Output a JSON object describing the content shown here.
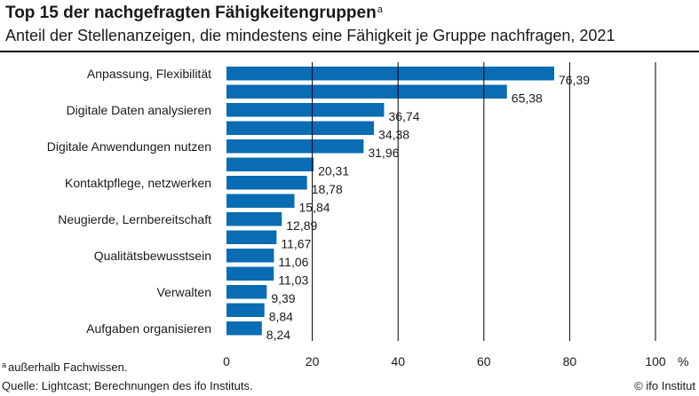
{
  "header": {
    "title": "Top 15 der nachgefragten Fähigkeitengruppen",
    "title_marker": "a",
    "subtitle": "Anteil der Stellenanzeigen, die mindestens eine Fähigkeit je Gruppe nachfragen, 2021"
  },
  "footer": {
    "footnote_marker": "a",
    "footnote_text": "außerhalb Fachwissen.",
    "source": "Quelle: Lightcast; Berechnungen des ifo Instituts.",
    "credit": "© ifo Institut"
  },
  "chart_data": {
    "type": "bar",
    "orientation": "horizontal",
    "categories": [
      "Anpassung, Flexibilität",
      "",
      "Digitale Daten analysieren",
      "",
      "Digitale Anwendungen nutzen",
      "",
      "Kontaktpflege, netzwerken",
      "",
      "Neugierde, Lernbereitschaft",
      "",
      "Qualitätsbewusstsein",
      "",
      "Verwalten",
      "",
      "Aufgaben organisieren"
    ],
    "values": [
      76.39,
      65.38,
      36.74,
      34.38,
      31.96,
      20.31,
      18.78,
      15.84,
      12.89,
      11.67,
      11.06,
      11.03,
      9.39,
      8.84,
      8.24
    ],
    "value_labels": [
      "76,39",
      "65,38",
      "36,74",
      "34,38",
      "31,96",
      "20,31",
      "18,78",
      "15,84",
      "12,89",
      "11,67",
      "11,06",
      "11,03",
      "9,39",
      "8,84",
      "8,24"
    ],
    "xlim": [
      0,
      100
    ],
    "xticks": [
      0,
      20,
      40,
      60,
      80,
      100
    ],
    "xtick_labels": [
      "0",
      "20",
      "40",
      "60",
      "80",
      "100"
    ],
    "xunit": "%",
    "grid": "vertical",
    "bar_color": "#0a6cb3",
    "grid_color": "#000000"
  }
}
